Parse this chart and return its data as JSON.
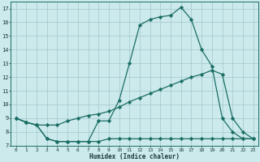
{
  "xlabel": "Humidex (Indice chaleur)",
  "bg_color": "#cce9ec",
  "grid_color": "#a0c8cd",
  "line_color": "#1a6e64",
  "x_values": [
    0,
    1,
    2,
    3,
    4,
    5,
    6,
    7,
    8,
    9,
    10,
    11,
    12,
    13,
    14,
    15,
    16,
    17,
    18,
    19,
    20,
    21,
    22,
    23
  ],
  "y_max": [
    9.0,
    8.7,
    8.5,
    7.5,
    7.3,
    7.3,
    7.3,
    7.3,
    8.8,
    8.8,
    10.3,
    13.0,
    15.8,
    16.2,
    16.4,
    16.5,
    17.1,
    16.2,
    14.0,
    12.8,
    9.0,
    8.0,
    7.5,
    7.5
  ],
  "y_min": [
    9.0,
    8.7,
    8.5,
    7.5,
    7.3,
    7.3,
    7.3,
    7.3,
    7.3,
    7.5,
    7.5,
    7.5,
    7.5,
    7.5,
    7.5,
    7.5,
    7.5,
    7.5,
    7.5,
    7.5,
    7.5,
    7.5,
    7.5,
    7.5
  ],
  "y_avg": [
    9.0,
    8.7,
    8.5,
    8.5,
    8.5,
    8.8,
    9.0,
    9.2,
    9.3,
    9.5,
    9.8,
    10.2,
    10.5,
    10.8,
    11.1,
    11.4,
    11.7,
    12.0,
    12.2,
    12.5,
    12.2,
    9.0,
    8.0,
    7.5
  ],
  "ylim": [
    7,
    17.5
  ],
  "xlim": [
    -0.5,
    23.5
  ],
  "yticks": [
    7,
    8,
    9,
    10,
    11,
    12,
    13,
    14,
    15,
    16,
    17
  ],
  "xticks": [
    0,
    1,
    2,
    3,
    4,
    5,
    6,
    7,
    8,
    9,
    10,
    11,
    12,
    13,
    14,
    15,
    16,
    17,
    18,
    19,
    20,
    21,
    22,
    23
  ]
}
